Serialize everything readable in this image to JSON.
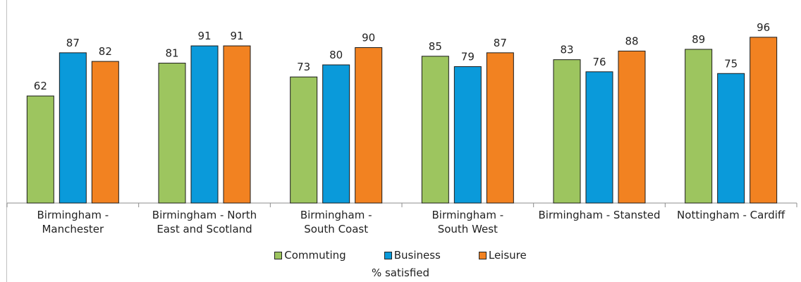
{
  "chart_data": {
    "type": "bar",
    "categories": [
      [
        "Birmingham -",
        "Manchester"
      ],
      [
        "Birmingham - North",
        "East and Scotland"
      ],
      [
        "Birmingham -",
        "South Coast"
      ],
      [
        "Birmingham -",
        "South West"
      ],
      [
        "Birmingham - Stansted"
      ],
      [
        "Nottingham - Cardiff"
      ]
    ],
    "series": [
      {
        "name": "Commuting",
        "color": "#9DC55F",
        "values": [
          62,
          81,
          73,
          85,
          83,
          89
        ]
      },
      {
        "name": "Business",
        "color": "#0A9ADA",
        "values": [
          87,
          91,
          80,
          79,
          76,
          75
        ]
      },
      {
        "name": "Leisure",
        "color": "#F28221",
        "values": [
          82,
          91,
          90,
          87,
          88,
          96
        ]
      }
    ],
    "xlabel": "% satisfied",
    "ylabel": "",
    "ylim": [
      0,
      100
    ],
    "legend_position": "bottom",
    "grid": false,
    "data_labels": true
  }
}
